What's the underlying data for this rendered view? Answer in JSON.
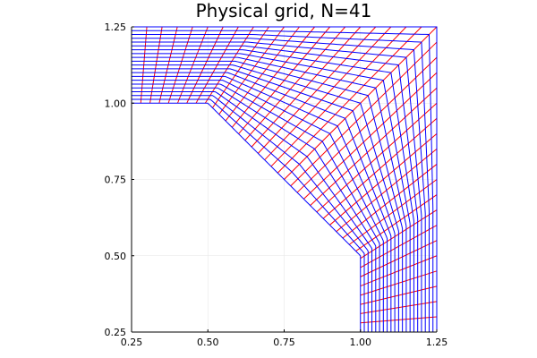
{
  "chart_data": {
    "type": "line",
    "title": "Physical grid, N=41",
    "xlabel": "",
    "ylabel": "",
    "xlim": [
      0.25,
      1.25
    ],
    "ylim": [
      0.25,
      1.25
    ],
    "x_ticks": [
      "0.25",
      "0.50",
      "0.75",
      "1.00",
      "1.25"
    ],
    "y_ticks": [
      "0.25",
      "0.50",
      "0.75",
      "1.00",
      "1.25"
    ],
    "grid": true,
    "legend": "none",
    "aspect": "equal",
    "grid_resolution": 41,
    "inner_boundary": [
      [
        0.25,
        1.0
      ],
      [
        0.5,
        1.0
      ],
      [
        1.0,
        0.5
      ],
      [
        1.0,
        0.25
      ]
    ],
    "outer_boundary": [
      [
        0.25,
        1.25
      ],
      [
        1.25,
        1.25
      ],
      [
        1.25,
        0.25
      ]
    ],
    "series": [
      {
        "color": "#ff0000",
        "description": "lines between inner and outer boundary"
      },
      {
        "color": "#0000ff",
        "description": "lines parallel to inner boundary"
      }
    ]
  }
}
